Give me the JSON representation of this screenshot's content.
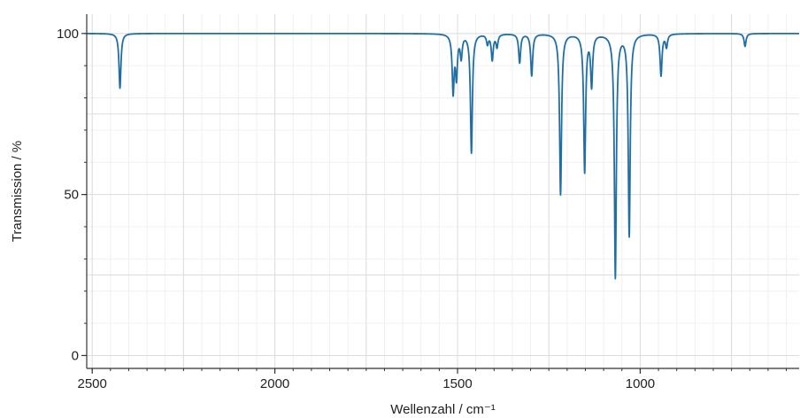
{
  "chart_data": {
    "type": "line",
    "xlabel": "Wellenzahl / cm⁻¹",
    "ylabel": "Transmission / %",
    "xlim": [
      2515,
      565
    ],
    "ylim": [
      -4,
      106
    ],
    "x_reversed": true,
    "grid": true,
    "x_ticks": [
      2500,
      2000,
      1500,
      1000
    ],
    "y_ticks": [
      0,
      50,
      100
    ],
    "x_tick_labels": [
      "2500",
      "2000",
      "1500",
      "1000"
    ],
    "y_tick_labels": [
      "0",
      "50",
      "100"
    ],
    "series": [
      {
        "color": "#1f6fa5",
        "baseline": 100,
        "peaks": [
          {
            "x": 2424,
            "y": 83
          },
          {
            "x": 1512,
            "y": 82
          },
          {
            "x": 1503,
            "y": 87
          },
          {
            "x": 1490,
            "y": 93
          },
          {
            "x": 1462,
            "y": 63
          },
          {
            "x": 1418,
            "y": 97
          },
          {
            "x": 1405,
            "y": 92
          },
          {
            "x": 1392,
            "y": 96
          },
          {
            "x": 1330,
            "y": 91
          },
          {
            "x": 1297,
            "y": 87
          },
          {
            "x": 1218,
            "y": 50
          },
          {
            "x": 1152,
            "y": 57
          },
          {
            "x": 1133,
            "y": 84
          },
          {
            "x": 1068,
            "y": 24
          },
          {
            "x": 1030,
            "y": 37
          },
          {
            "x": 943,
            "y": 87
          },
          {
            "x": 928,
            "y": 96
          },
          {
            "x": 713,
            "y": 96
          }
        ]
      }
    ]
  }
}
